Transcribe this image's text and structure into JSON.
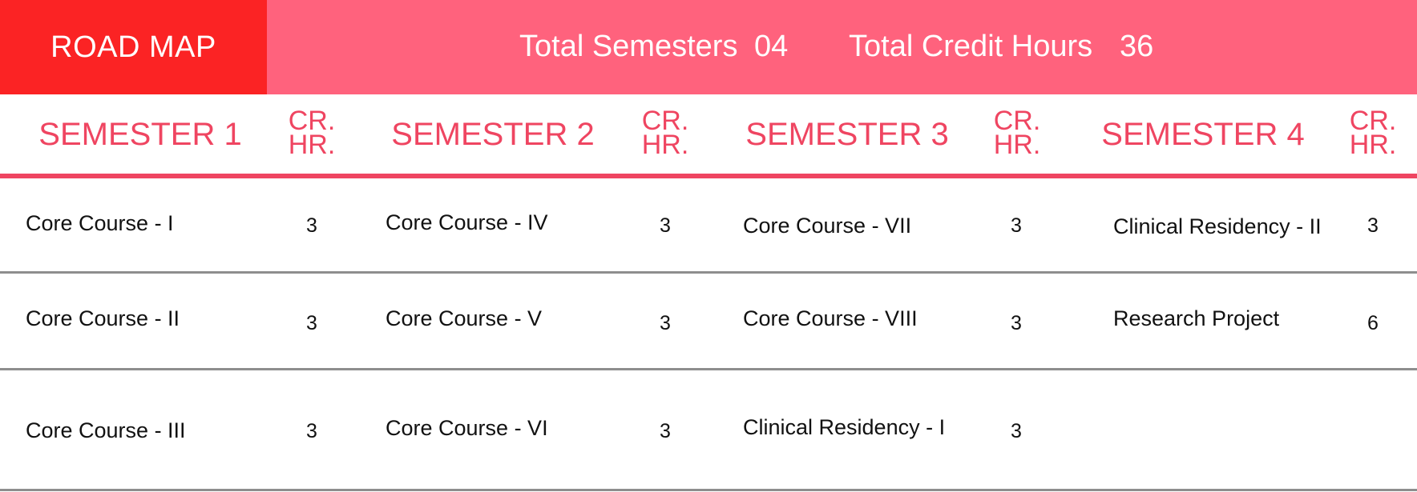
{
  "header": {
    "brand": "ROAD MAP",
    "total_semesters_label": "Total Semesters",
    "total_semesters_value": "04",
    "total_credit_label": "Total Credit Hours",
    "total_credit_value": "36"
  },
  "colors": {
    "brand_bg": "#fb2324",
    "header_bg": "#ff627d",
    "accent": "#ef4561",
    "text": "#111111",
    "divider": "#8e8e8e"
  },
  "table": {
    "credit_header": [
      "CR.",
      "HR."
    ],
    "semesters": [
      {
        "title": "SEMESTER 1",
        "courses": [
          {
            "name": "Core Course - I",
            "credits": "3"
          },
          {
            "name": "Core Course - II",
            "credits": "3"
          },
          {
            "name": "Core Course - III",
            "credits": "3"
          }
        ]
      },
      {
        "title": "SEMESTER 2",
        "courses": [
          {
            "name": "Core Course - IV",
            "credits": "3"
          },
          {
            "name": "Core Course - V",
            "credits": "3"
          },
          {
            "name": "Core Course - VI",
            "credits": "3"
          }
        ]
      },
      {
        "title": "SEMESTER 3",
        "courses": [
          {
            "name": "Core Course - VII",
            "credits": "3"
          },
          {
            "name": "Core Course - VIII",
            "credits": "3"
          },
          {
            "name": "Clinical Residency - I",
            "credits": "3"
          }
        ]
      },
      {
        "title": "SEMESTER 4",
        "courses": [
          {
            "name": "Clinical Residency - II",
            "credits": "3"
          },
          {
            "name": "Research Project",
            "credits": "6"
          }
        ]
      }
    ]
  }
}
